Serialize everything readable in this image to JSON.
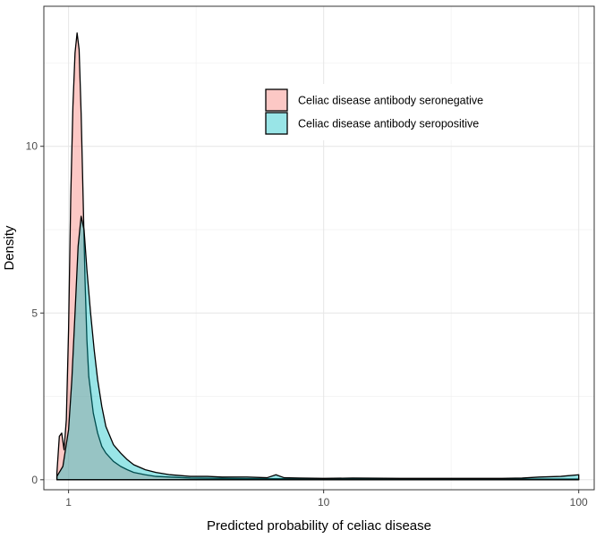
{
  "chart_data": {
    "type": "area",
    "title": "",
    "xlabel": "Predicted probability of celiac disease",
    "ylabel": "Density",
    "x_scale": "log10",
    "xlim": [
      0.8,
      115
    ],
    "ylim": [
      -0.3,
      14.2
    ],
    "x_ticks": [
      1,
      10,
      100
    ],
    "x_tick_labels": [
      "1",
      "10",
      "100"
    ],
    "y_ticks": [
      0,
      5,
      10
    ],
    "y_tick_labels": [
      "0",
      "5",
      "10"
    ],
    "grid": true,
    "legend_position": "top-right",
    "series": [
      {
        "name": "Celiac disease antibody seronegative",
        "color": "#F8766D",
        "fill": "#F8C3BE",
        "x": [
          0.9,
          0.92,
          0.94,
          0.96,
          0.98,
          1.0,
          1.02,
          1.04,
          1.06,
          1.08,
          1.1,
          1.12,
          1.14,
          1.16,
          1.18,
          1.2,
          1.25,
          1.3,
          1.35,
          1.4,
          1.5,
          1.6,
          1.7,
          1.8,
          2.0,
          2.2,
          2.5,
          3.0,
          4.0,
          5.0,
          7.0,
          10,
          15,
          20,
          30,
          50,
          70,
          85,
          100
        ],
        "y": [
          0.2,
          1.3,
          1.4,
          0.9,
          1.8,
          4.5,
          8.5,
          11.2,
          12.8,
          13.4,
          12.9,
          11.0,
          8.5,
          6.0,
          4.2,
          3.1,
          2.0,
          1.4,
          1.0,
          0.8,
          0.55,
          0.4,
          0.3,
          0.22,
          0.15,
          0.1,
          0.08,
          0.05,
          0.04,
          0.03,
          0.03,
          0.02,
          0.02,
          0.02,
          0.02,
          0.02,
          0.02,
          0.02,
          0.02
        ]
      },
      {
        "name": "Celiac disease antibody seropositive",
        "color": "#00BFC4",
        "fill": "#82DCDE",
        "x": [
          0.9,
          0.95,
          1.0,
          1.03,
          1.06,
          1.09,
          1.12,
          1.15,
          1.18,
          1.22,
          1.26,
          1.3,
          1.35,
          1.4,
          1.5,
          1.6,
          1.7,
          1.8,
          2.0,
          2.2,
          2.5,
          3.0,
          3.5,
          4.0,
          5.0,
          6.0,
          6.5,
          7.0,
          8.0,
          10,
          13,
          20,
          30,
          50,
          60,
          70,
          85,
          100
        ],
        "y": [
          0.1,
          0.4,
          1.5,
          3.0,
          5.0,
          7.0,
          7.9,
          7.5,
          6.3,
          5.0,
          3.9,
          3.0,
          2.2,
          1.6,
          1.05,
          0.8,
          0.6,
          0.45,
          0.3,
          0.22,
          0.15,
          0.1,
          0.1,
          0.08,
          0.08,
          0.06,
          0.15,
          0.06,
          0.05,
          0.04,
          0.05,
          0.04,
          0.04,
          0.04,
          0.05,
          0.08,
          0.1,
          0.15
        ]
      }
    ]
  }
}
